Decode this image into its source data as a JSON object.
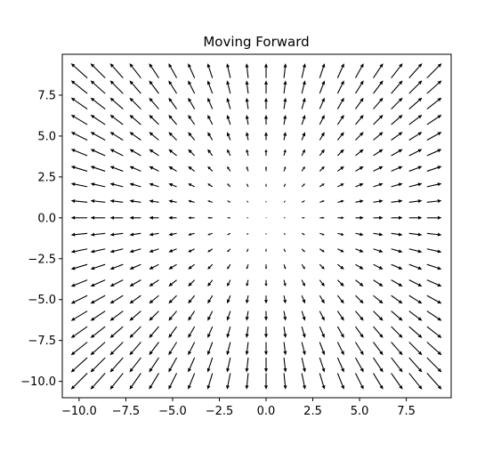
{
  "chart_data": {
    "type": "quiver",
    "title": "Moving Forward",
    "xlabel": "",
    "ylabel": "",
    "xlim": [
      -10.9,
      9.9
    ],
    "ylim": [
      -11.0,
      10.0
    ],
    "grid": false,
    "legend": "none",
    "x_ticks": [
      -10.0,
      -7.5,
      -5.0,
      -2.5,
      0.0,
      2.5,
      5.0,
      7.5
    ],
    "x_tick_labels": [
      "−10.0",
      "−7.5",
      "−5.0",
      "−2.5",
      "0.0",
      "2.5",
      "5.0",
      "7.5"
    ],
    "y_ticks": [
      7.5,
      5.0,
      2.5,
      0.0,
      -2.5,
      -5.0,
      -7.5,
      -10.0
    ],
    "y_tick_labels": [
      "7.5",
      "5.0",
      "2.5",
      "0.0",
      "−2.5",
      "−5.0",
      "−7.5",
      "−10.0"
    ],
    "grid_x": {
      "start": -10,
      "stop": 9,
      "step": 1
    },
    "grid_y": {
      "start": -10,
      "stop": 9,
      "step": 1
    },
    "vector_field": {
      "u": "x",
      "v": "y"
    },
    "arrow_color": "#000000"
  }
}
